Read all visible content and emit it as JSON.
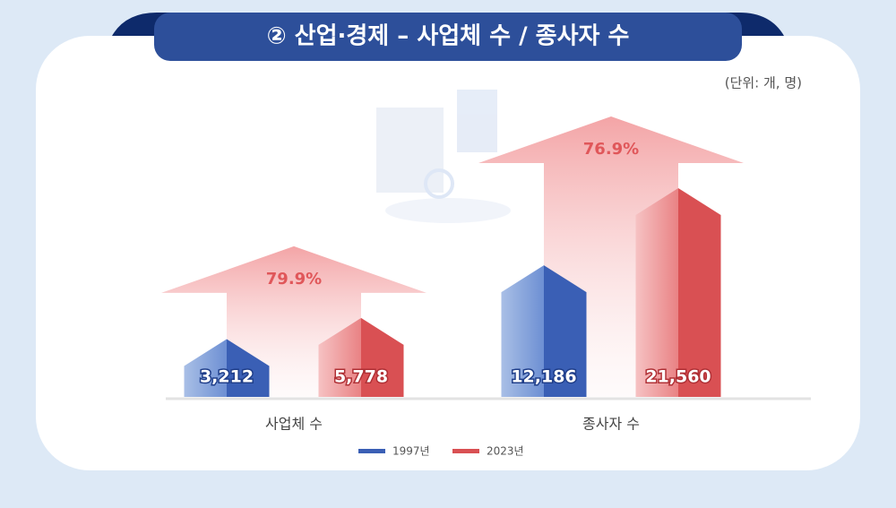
{
  "chart_data": {
    "type": "house-bar",
    "title": "② 산업·경제 – 사업체 수 / 종사자 수",
    "subtitle": "(단위: 개, 명)",
    "categories": [
      "사업체 수",
      "종사자 수"
    ],
    "series": [
      {
        "name": "1997년",
        "color": "#3a5fb5",
        "values": [
          3212,
          12186
        ],
        "value_labels": [
          "3,212",
          "12,186"
        ]
      },
      {
        "name": "2023년",
        "color": "#d95053",
        "values": [
          5778,
          21560
        ],
        "value_labels": [
          "5,778",
          "21,560"
        ]
      }
    ],
    "growth": [
      79.9,
      76.9
    ],
    "growth_labels": [
      "79.9%",
      "76.9%"
    ]
  }
}
